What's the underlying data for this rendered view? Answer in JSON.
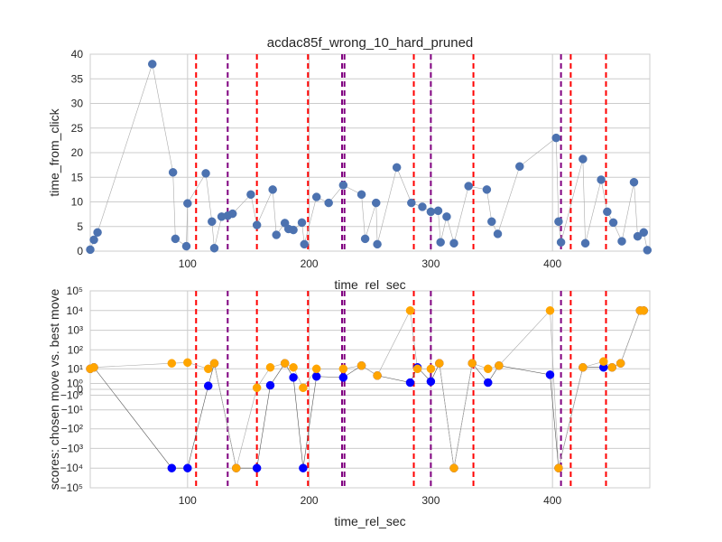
{
  "chart_data": [
    {
      "type": "line",
      "title": "acdac85f_wrong_10_hard_pruned",
      "xlabel": "time_rel_sec",
      "ylabel": "time_from_click",
      "xlim": [
        20,
        480
      ],
      "ylim": [
        0,
        40
      ],
      "xticks": [
        100,
        200,
        300,
        400
      ],
      "yticks": [
        0,
        5,
        10,
        15,
        20,
        25,
        30,
        35,
        40
      ],
      "grid": true,
      "marker_color": "#4c72b0",
      "vlines": [
        {
          "x": 107,
          "color": "#ff0000"
        },
        {
          "x": 133,
          "color": "#800080"
        },
        {
          "x": 157,
          "color": "#ff0000"
        },
        {
          "x": 199,
          "color": "#ff0000"
        },
        {
          "x": 227,
          "color": "#800080"
        },
        {
          "x": 229,
          "color": "#800080"
        },
        {
          "x": 286,
          "color": "#ff0000"
        },
        {
          "x": 300,
          "color": "#800080"
        },
        {
          "x": 335,
          "color": "#ff0000"
        },
        {
          "x": 407,
          "color": "#800080"
        },
        {
          "x": 415,
          "color": "#ff0000"
        },
        {
          "x": 444,
          "color": "#ff0000"
        }
      ],
      "x": [
        20,
        23,
        26,
        71,
        88,
        90,
        99,
        100,
        115,
        120,
        122,
        128,
        133,
        137,
        152,
        157,
        170,
        173,
        180,
        183,
        187,
        194,
        196,
        206,
        216,
        228,
        243,
        246,
        255,
        256,
        272,
        284,
        293,
        300,
        306,
        308,
        313,
        319,
        331,
        346,
        350,
        355,
        373,
        403,
        405,
        407,
        425,
        427,
        440,
        445,
        450,
        457,
        467,
        470,
        475,
        478
      ],
      "y": [
        0.3,
        2.3,
        3.8,
        38,
        16,
        2.5,
        1,
        9.7,
        15.8,
        6,
        0.6,
        7,
        7.2,
        7.6,
        11.5,
        5.3,
        12.5,
        3.3,
        5.7,
        4.5,
        4.3,
        5.8,
        1.4,
        11,
        9.8,
        13.4,
        11.5,
        2.5,
        9.8,
        1.4,
        17,
        9.8,
        9,
        8,
        8.2,
        1.8,
        7,
        1.6,
        13.2,
        12.5,
        6,
        3.5,
        17.2,
        23,
        6,
        1.8,
        18.7,
        1.6,
        14.5,
        8,
        5.8,
        2,
        14,
        3,
        3.8,
        0.2
      ]
    },
    {
      "type": "scatter",
      "xlabel": "time_rel_sec",
      "ylabel": "scores: chosen move vs. best move",
      "xlim": [
        20,
        480
      ],
      "yscale": "symlog",
      "ylim": [
        -100000,
        100000
      ],
      "xticks": [
        100,
        200,
        300,
        400
      ],
      "yticks": [
        {
          "value": -100000,
          "label": "−10⁵"
        },
        {
          "value": -10000,
          "label": "−10⁴"
        },
        {
          "value": -1000,
          "label": "−10³"
        },
        {
          "value": -100,
          "label": "−10²"
        },
        {
          "value": -10,
          "label": "−10¹"
        },
        {
          "value": -1,
          "label": "−10⁰"
        },
        {
          "value": 0,
          "label": "0"
        },
        {
          "value": 1,
          "label": "10⁰"
        },
        {
          "value": 10,
          "label": "10¹"
        },
        {
          "value": 100,
          "label": "10²"
        },
        {
          "value": 1000,
          "label": "10³"
        },
        {
          "value": 10000,
          "label": "10⁴"
        },
        {
          "value": 100000,
          "label": "10⁵"
        }
      ],
      "grid": true,
      "vlines": [
        {
          "x": 107,
          "color": "#ff0000"
        },
        {
          "x": 133,
          "color": "#800080"
        },
        {
          "x": 157,
          "color": "#ff0000"
        },
        {
          "x": 199,
          "color": "#ff0000"
        },
        {
          "x": 227,
          "color": "#800080"
        },
        {
          "x": 229,
          "color": "#800080"
        },
        {
          "x": 286,
          "color": "#ff0000"
        },
        {
          "x": 300,
          "color": "#800080"
        },
        {
          "x": 335,
          "color": "#ff0000"
        },
        {
          "x": 407,
          "color": "#800080"
        },
        {
          "x": 415,
          "color": "#ff0000"
        },
        {
          "x": 444,
          "color": "#ff0000"
        }
      ],
      "series": [
        {
          "color": "#0000ff",
          "x": [
            20,
            23,
            87,
            100,
            117,
            122,
            140,
            157,
            168,
            180,
            187,
            195,
            206,
            228,
            243,
            256,
            283,
            289,
            300,
            307,
            319,
            334,
            347,
            356,
            398,
            405,
            425,
            442,
            449,
            456,
            472,
            475
          ],
          "y": [
            10,
            12,
            -10000,
            -10000,
            0.5,
            20,
            -10000,
            -10000,
            0.6,
            20,
            3,
            -10000,
            3.5,
            3,
            15,
            4,
            1.2,
            12,
            1.5,
            20,
            -10000,
            20,
            1.2,
            15,
            4.5,
            -10000,
            12,
            12,
            12,
            20,
            10000,
            10000
          ]
        },
        {
          "color": "#ffa500",
          "x": [
            20,
            23,
            87,
            100,
            117,
            122,
            140,
            157,
            168,
            180,
            187,
            195,
            206,
            228,
            243,
            256,
            283,
            289,
            300,
            307,
            319,
            334,
            347,
            356,
            398,
            405,
            425,
            442,
            449,
            456,
            472,
            475
          ],
          "y": [
            10,
            12,
            20,
            22,
            10,
            20,
            -10000,
            0.2,
            12,
            20,
            12,
            0.2,
            10,
            10,
            15,
            4,
            10000,
            10,
            10,
            20,
            -10000,
            20,
            10,
            15,
            10000,
            -10000,
            12,
            25,
            12,
            20,
            10000,
            10000
          ]
        }
      ]
    }
  ]
}
